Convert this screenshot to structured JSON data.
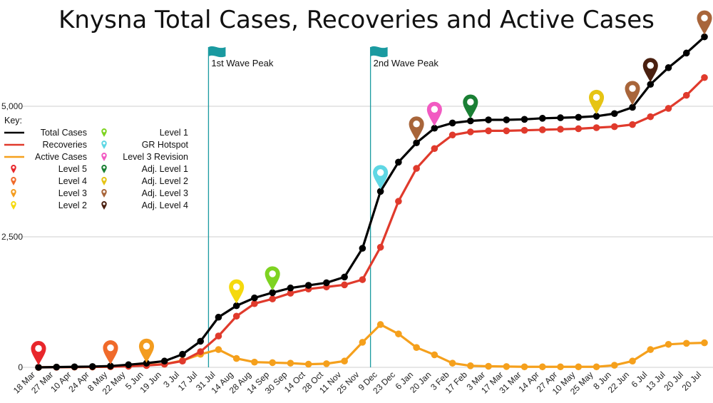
{
  "chart_data": {
    "type": "line",
    "title": "Knysna Total Cases, Recoveries and Active Cases",
    "xlabel": "",
    "ylabel": "",
    "ylim": [
      0,
      6500
    ],
    "y_ticks": [
      0,
      2500,
      5000
    ],
    "y_tick_labels": [
      "0",
      "2,500",
      "5,000"
    ],
    "grid": true,
    "categories": [
      "18 Mar",
      "27 Mar",
      "10 Apr",
      "24 Apr",
      "8 May",
      "22 May",
      "5 Jun",
      "19 Jun",
      "3 Jul",
      "17 Jul",
      "31 Jul",
      "14 Aug",
      "28 Aug",
      "14 Sep",
      "30 Sep",
      "14 Oct",
      "28 Oct",
      "11 Nov",
      "25 Nov",
      "9 Dec",
      "23 Dec",
      "6 Jan",
      "20 Jan",
      "3 Feb",
      "17 Feb",
      "3 Mar",
      "17 Mar",
      "31 Mar",
      "14 Apr",
      "27 Apr",
      "10 May",
      "25 May",
      "8 Jun",
      "22 Jun",
      "6 Jul",
      "13 Jul",
      "20 Jul",
      "20 Jul"
    ],
    "series": [
      {
        "name": "Total Cases",
        "color": "#000000",
        "values": [
          0,
          5,
          10,
          15,
          25,
          50,
          80,
          120,
          250,
          500,
          960,
          1180,
          1330,
          1430,
          1520,
          1570,
          1620,
          1730,
          2280,
          3370,
          3930,
          4300,
          4580,
          4680,
          4720,
          4740,
          4740,
          4750,
          4770,
          4780,
          4790,
          4810,
          4860,
          4980,
          5420,
          5740,
          6020,
          6330
        ]
      },
      {
        "name": "Recoveries",
        "color": "#e03a2c",
        "values": [
          0,
          2,
          5,
          8,
          12,
          20,
          35,
          60,
          120,
          300,
          600,
          980,
          1220,
          1310,
          1420,
          1500,
          1540,
          1580,
          1680,
          2300,
          3180,
          3810,
          4190,
          4450,
          4510,
          4530,
          4530,
          4540,
          4550,
          4560,
          4570,
          4590,
          4610,
          4650,
          4800,
          4960,
          5210,
          5550
        ]
      },
      {
        "name": "Active Cases",
        "color": "#f5a01c",
        "values": [
          0,
          3,
          5,
          7,
          13,
          30,
          45,
          60,
          130,
          250,
          340,
          170,
          100,
          90,
          80,
          60,
          70,
          120,
          480,
          820,
          640,
          380,
          240,
          80,
          30,
          20,
          15,
          10,
          10,
          10,
          10,
          10,
          40,
          120,
          340,
          440,
          460,
          470
        ]
      }
    ],
    "annotations": [
      {
        "label": "1st Wave Peak",
        "x": "31 Jul"
      },
      {
        "label": "2nd Wave Peak",
        "x": "9 Dec"
      }
    ],
    "legend": {
      "title": "Key:",
      "placement": "top-left",
      "lines": [
        {
          "label": "Total Cases",
          "color": "#000000"
        },
        {
          "label": "Recoveries",
          "color": "#e03a2c"
        },
        {
          "label": "Active Cases",
          "color": "#f5a01c"
        }
      ],
      "pins_left": [
        {
          "label": "Level 5",
          "color": "#e8262b"
        },
        {
          "label": "Level 4",
          "color": "#f06a2a"
        },
        {
          "label": "Level 3",
          "color": "#f39c1f"
        },
        {
          "label": "Level 2",
          "color": "#f5d90d"
        }
      ],
      "pins_right": [
        {
          "label": "Level 1",
          "color": "#7ed321"
        },
        {
          "label": "GR Hotspot",
          "color": "#5fd7e4"
        },
        {
          "label": "Level 3 Revision",
          "color": "#f25ac2"
        },
        {
          "label": "Adj. Level 1",
          "color": "#1a7f34"
        },
        {
          "label": "Adj. Level 2",
          "color": "#e6c414"
        },
        {
          "label": "Adj. Level 3",
          "color": "#a8653a"
        },
        {
          "label": "Adj. Level 4",
          "color": "#4a2010"
        }
      ]
    },
    "markers": [
      {
        "name": "Level 5",
        "index": 0,
        "series": 2,
        "color": "#e8262b"
      },
      {
        "name": "Level 4",
        "index": 4,
        "series": 2,
        "color": "#f06a2a"
      },
      {
        "name": "Level 3",
        "index": 6,
        "series": 2,
        "color": "#f39c1f"
      },
      {
        "name": "Level 2",
        "index": 11,
        "series": 0,
        "color": "#f5d90d"
      },
      {
        "name": "Level 1",
        "index": 13,
        "series": 0,
        "color": "#7ed321"
      },
      {
        "name": "GR Hotspot",
        "index": 19,
        "series": 0,
        "color": "#5fd7e4"
      },
      {
        "name": "Adj. Level 3",
        "index": 21,
        "series": 0,
        "color": "#a8653a"
      },
      {
        "name": "Level 3 Revision",
        "index": 22,
        "series": 0,
        "color": "#f25ac2"
      },
      {
        "name": "Adj. Level 1",
        "index": 24,
        "series": 0,
        "color": "#1a7f34"
      },
      {
        "name": "Adj. Level 2",
        "index": 31,
        "series": 0,
        "color": "#e6c414"
      },
      {
        "name": "Adj. Level 3",
        "index": 33,
        "series": 0,
        "color": "#a8653a"
      },
      {
        "name": "Adj. Level 4",
        "index": 34,
        "series": 0,
        "color": "#4a2010"
      },
      {
        "name": "Adj. Level 3",
        "index": 37,
        "series": 0,
        "color": "#a8653a"
      }
    ],
    "flag_color": "#1a9aa0"
  }
}
